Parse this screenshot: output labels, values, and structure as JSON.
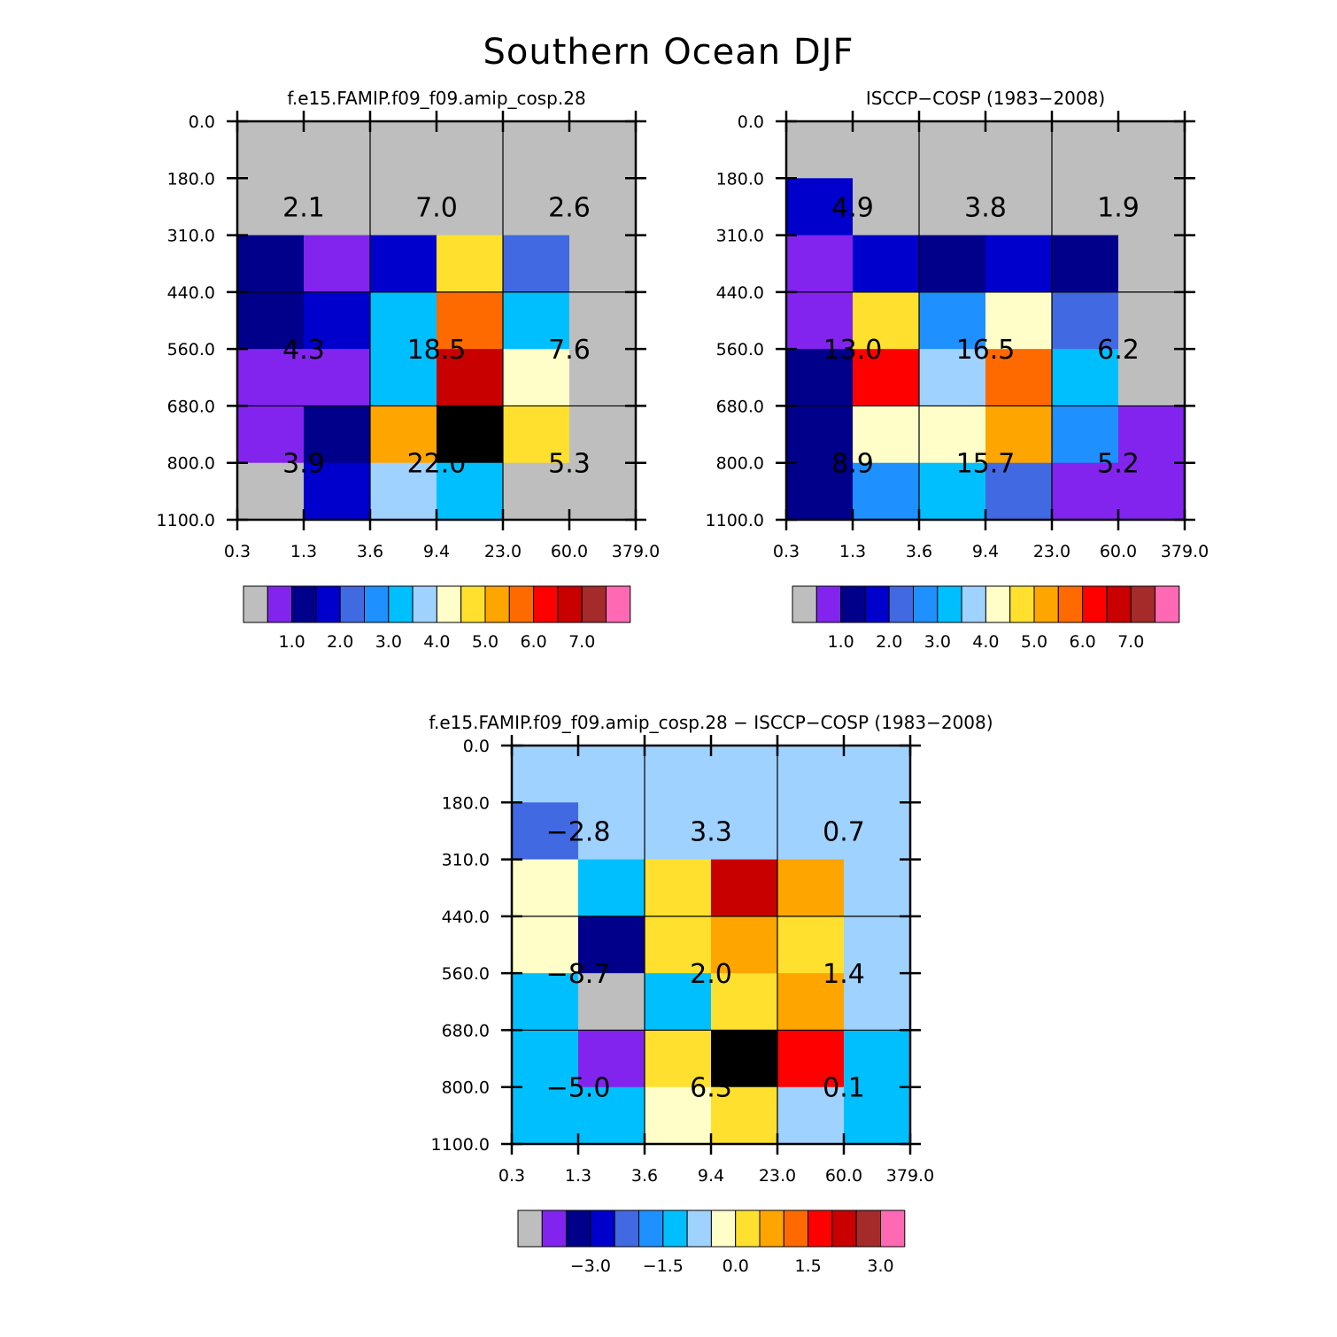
{
  "figure": {
    "title": "Southern Ocean DJF"
  },
  "chart_data": [
    {
      "type": "heatmap",
      "title": "f.e15.FAMIP.f09_f09.amip_cosp.28",
      "x_ticks": [
        "0.3",
        "1.3",
        "3.6",
        "9.4",
        "23.0",
        "60.0",
        "379.0"
      ],
      "y_ticks": [
        "0.0",
        "180.0",
        "310.0",
        "440.0",
        "560.0",
        "680.0",
        "800.0",
        "1100.0"
      ],
      "cells": [
        [
          0,
          0,
          0,
          0,
          0,
          0
        ],
        [
          0,
          0,
          0,
          0,
          0,
          0
        ],
        [
          2,
          1,
          3,
          9,
          4,
          0
        ],
        [
          2,
          3,
          6,
          11,
          6,
          0
        ],
        [
          1,
          1,
          6,
          13,
          8,
          0
        ],
        [
          1,
          2,
          10,
          16,
          9,
          0
        ],
        [
          0,
          3,
          7,
          6,
          0,
          0
        ]
      ],
      "group_labels": [
        [
          "2.1",
          "7.0",
          "2.6"
        ],
        [
          "4.3",
          "18.5",
          "7.6"
        ],
        [
          "3.9",
          "22.0",
          "5.3"
        ]
      ],
      "colorbar": {
        "labels": [
          "1.0",
          "2.0",
          "3.0",
          "4.0",
          "5.0",
          "6.0",
          "7.0"
        ]
      }
    },
    {
      "type": "heatmap",
      "title": "ISCCP−COSP (1983−2008)",
      "x_ticks": [
        "0.3",
        "1.3",
        "3.6",
        "9.4",
        "23.0",
        "60.0",
        "379.0"
      ],
      "y_ticks": [
        "0.0",
        "180.0",
        "310.0",
        "440.0",
        "560.0",
        "680.0",
        "800.0",
        "1100.0"
      ],
      "cells": [
        [
          0,
          0,
          0,
          0,
          0,
          0
        ],
        [
          3,
          0,
          0,
          0,
          0,
          0
        ],
        [
          1,
          3,
          2,
          3,
          2,
          0
        ],
        [
          1,
          9,
          5,
          8,
          4,
          0
        ],
        [
          2,
          12,
          7,
          11,
          6,
          0
        ],
        [
          2,
          8,
          8,
          10,
          5,
          1
        ],
        [
          2,
          5,
          6,
          4,
          1,
          1
        ]
      ],
      "group_labels": [
        [
          "4.9",
          "3.8",
          "1.9"
        ],
        [
          "13.0",
          "16.5",
          "6.2"
        ],
        [
          "8.9",
          "15.7",
          "5.2"
        ]
      ],
      "colorbar": {
        "labels": [
          "1.0",
          "2.0",
          "3.0",
          "4.0",
          "5.0",
          "6.0",
          "7.0"
        ]
      }
    },
    {
      "type": "heatmap",
      "title": "f.e15.FAMIP.f09_f09.amip_cosp.28 − ISCCP−COSP (1983−2008)",
      "x_ticks": [
        "0.3",
        "1.3",
        "3.6",
        "9.4",
        "23.0",
        "60.0",
        "379.0"
      ],
      "y_ticks": [
        "0.0",
        "180.0",
        "310.0",
        "440.0",
        "560.0",
        "680.0",
        "800.0",
        "1100.0"
      ],
      "cells": [
        [
          7,
          7,
          7,
          7,
          7,
          7
        ],
        [
          4,
          7,
          7,
          7,
          7,
          7
        ],
        [
          8,
          6,
          9,
          13,
          10,
          7
        ],
        [
          8,
          2,
          9,
          10,
          9,
          7
        ],
        [
          6,
          0,
          6,
          9,
          10,
          7
        ],
        [
          6,
          1,
          9,
          16,
          12,
          6
        ],
        [
          6,
          6,
          8,
          9,
          7,
          6
        ]
      ],
      "group_labels": [
        [
          "−2.8",
          "3.3",
          "0.7"
        ],
        [
          "−8.7",
          "2.0",
          "1.4"
        ],
        [
          "−5.0",
          "6.3",
          "0.1"
        ]
      ],
      "colorbar": {
        "labels": [
          "−3.0",
          "−1.5",
          "0.0",
          "1.5",
          "3.0"
        ]
      }
    }
  ],
  "palette": [
    "#bebebe",
    "#8224ee",
    "#00008b",
    "#0000cd",
    "#4169e1",
    "#1e90ff",
    "#00bfff",
    "#a0d2ff",
    "#fffdc8",
    "#ffe02e",
    "#ffa500",
    "#ff6a00",
    "#ff0000",
    "#c80000",
    "#a52a2a",
    "#ff69b4"
  ]
}
